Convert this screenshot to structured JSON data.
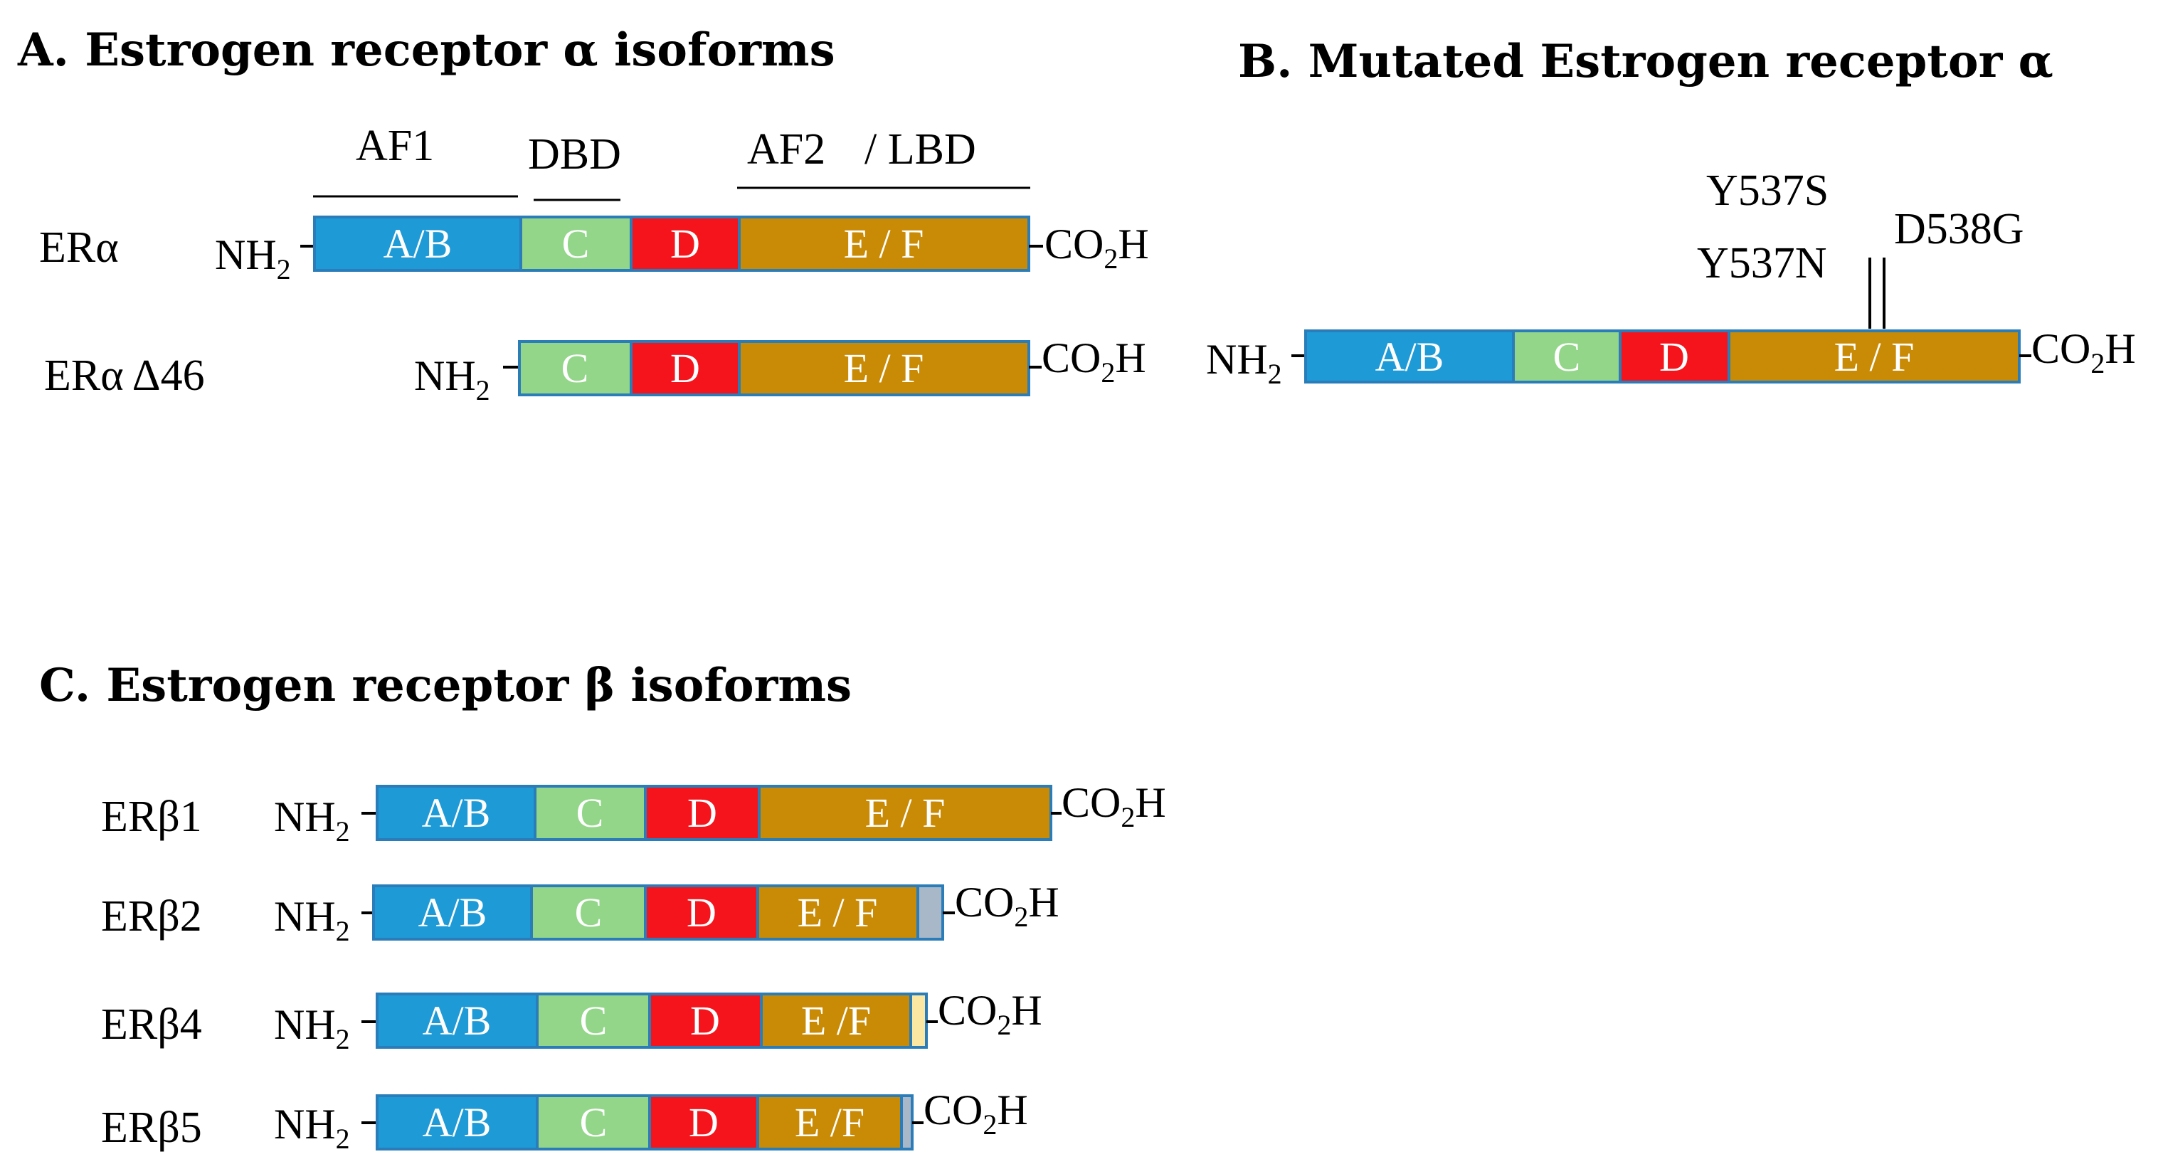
{
  "panelA": {
    "title": "A. Estrogen receptor α isoforms",
    "domain_labels": [
      "AF1",
      "DBD",
      "AF2",
      "/ LBD"
    ],
    "rows": [
      {
        "name": "ERα",
        "segments": [
          "A/B",
          "C",
          "D",
          "E / F"
        ]
      },
      {
        "name": "ERα Δ46",
        "segments": [
          "C",
          "D",
          "E / F"
        ]
      }
    ]
  },
  "panelB": {
    "title": "B. Mutated Estrogen receptor α",
    "mutations": [
      "Y537S",
      "Y537N",
      "D538G"
    ],
    "row": {
      "segments": [
        "A/B",
        "C",
        "D",
        "E / F"
      ]
    }
  },
  "panelC": {
    "title": "C. Estrogen receptor β isoforms",
    "rows": [
      {
        "name": "ERβ1",
        "segments": [
          "A/B",
          "C",
          "D",
          "E / F"
        ]
      },
      {
        "name": "ERβ2",
        "segments": [
          "A/B",
          "C",
          "D",
          "E / F"
        ]
      },
      {
        "name": "ERβ4",
        "segments": [
          "A/B",
          "C",
          "D",
          "E /F"
        ]
      },
      {
        "name": "ERβ5",
        "segments": [
          "A/B",
          "C",
          "D",
          "E /F"
        ]
      }
    ]
  },
  "terminus": {
    "n_main": "NH",
    "n_sub": "2",
    "c_pre": "CO",
    "c_sub": "2",
    "c_post": "H"
  },
  "colors": {
    "ab": "#1e9ad6",
    "c": "#93d68a",
    "d": "#f5141c",
    "ef": "#c98a05",
    "border": "#2a7db8",
    "beta2_tail": "#a9b8c8",
    "beta4_tail": "#fbe7a1",
    "beta5_tail": "#a9b8c8"
  }
}
